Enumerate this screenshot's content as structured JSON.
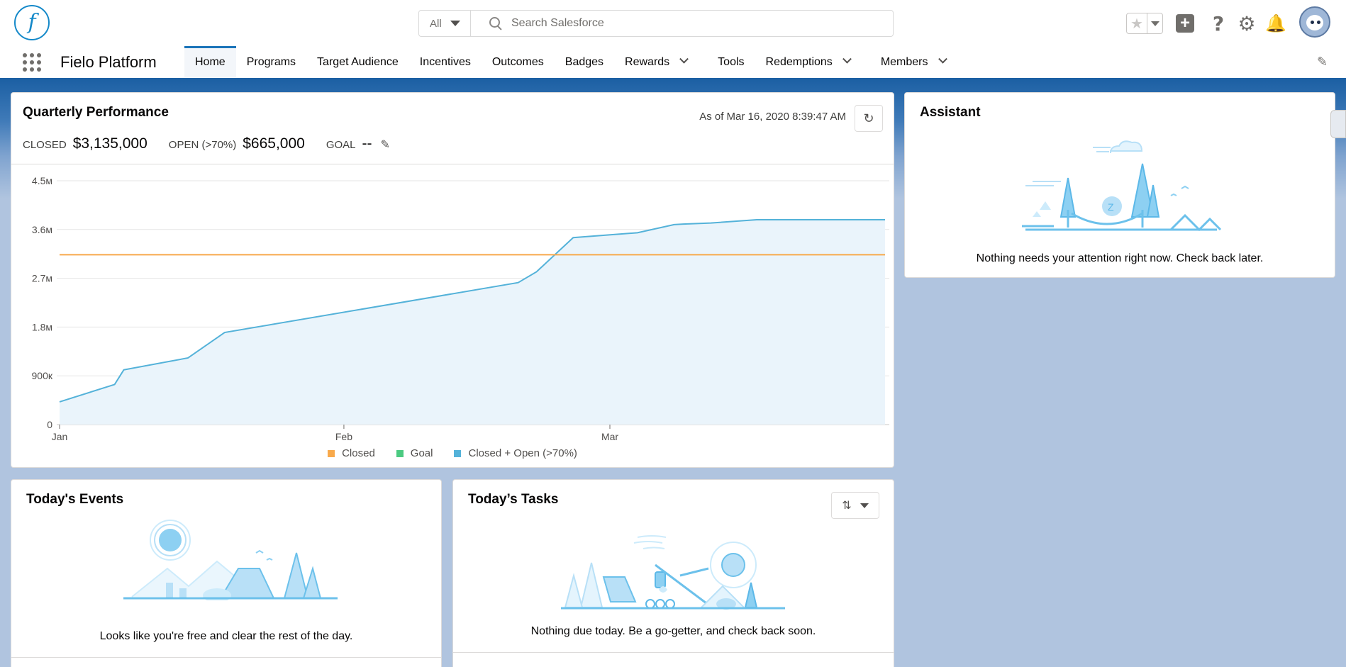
{
  "header": {
    "logo_letter": "f",
    "search_scope": "All",
    "search_placeholder": "Search Salesforce"
  },
  "nav": {
    "app_name": "Fielo Platform",
    "tabs": [
      {
        "label": "Home",
        "active": true,
        "menu": false
      },
      {
        "label": "Programs",
        "active": false,
        "menu": false
      },
      {
        "label": "Target Audience",
        "active": false,
        "menu": false
      },
      {
        "label": "Incentives",
        "active": false,
        "menu": false
      },
      {
        "label": "Outcomes",
        "active": false,
        "menu": false
      },
      {
        "label": "Badges",
        "active": false,
        "menu": false
      },
      {
        "label": "Rewards",
        "active": false,
        "menu": true
      },
      {
        "label": "Tools",
        "active": false,
        "menu": false
      },
      {
        "label": "Redemptions",
        "active": false,
        "menu": true
      },
      {
        "label": "Members",
        "active": false,
        "menu": true
      }
    ]
  },
  "quarterly": {
    "title": "Quarterly Performance",
    "closed_label": "CLOSED",
    "closed_value": "$3,135,000",
    "open_label": "OPEN (>70%)",
    "open_value": "$665,000",
    "goal_label": "GOAL",
    "goal_value": "--",
    "as_of": "As of Mar 16, 2020 8:39:47 AM"
  },
  "chart_data": {
    "type": "line",
    "ylim": [
      0,
      4500000
    ],
    "y_ticks": [
      "0",
      "900к",
      "1.8м",
      "2.7м",
      "3.6м",
      "4.5м"
    ],
    "y_tick_values": [
      0,
      900000,
      1800000,
      2700000,
      3600000,
      4500000
    ],
    "x_ticks": [
      "Jan",
      "Feb",
      "Mar"
    ],
    "x_tick_days": [
      0,
      31,
      60
    ],
    "x_range_days": [
      0,
      90
    ],
    "grid": true,
    "legend_position": "bottom",
    "series": [
      {
        "name": "Closed",
        "color": "#f8a94b",
        "x": [
          0,
          90
        ],
        "y": [
          3135000,
          3135000
        ]
      },
      {
        "name": "Goal",
        "color": "#4bca81",
        "x": [],
        "y": []
      },
      {
        "name": "Closed + Open (>70%)",
        "color": "#54b2d9",
        "fill": "#eaf4fb",
        "x": [
          0,
          6,
          7,
          14,
          18,
          50,
          52,
          56,
          63,
          67,
          68,
          71,
          76,
          90
        ],
        "y": [
          420000,
          740000,
          1010000,
          1230000,
          1700000,
          2620000,
          2820000,
          3450000,
          3540000,
          3690000,
          3700000,
          3720000,
          3780000,
          3780000
        ]
      }
    ]
  },
  "assistant": {
    "title": "Assistant",
    "message": "Nothing needs your attention right now. Check back later."
  },
  "events": {
    "title": "Today's Events",
    "message": "Looks like you're free and clear the rest of the day."
  },
  "tasks": {
    "title": "Today’s Tasks",
    "message": "Nothing due today. Be a go-getter, and check back soon."
  }
}
